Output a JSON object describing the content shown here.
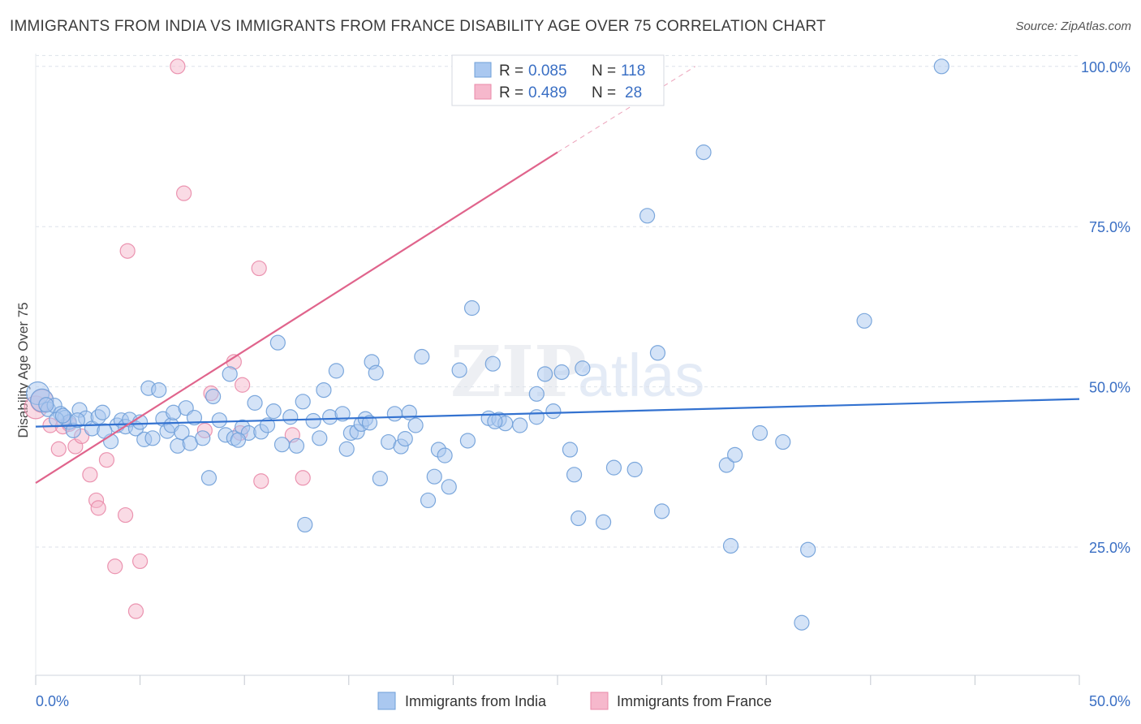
{
  "header": {
    "title": "IMMIGRANTS FROM INDIA VS IMMIGRANTS FROM FRANCE DISABILITY AGE OVER 75 CORRELATION CHART",
    "source": "Source: ZipAtlas.com"
  },
  "watermark": {
    "zip": "ZIP",
    "atlas": "atlas"
  },
  "legend": {
    "rows": [
      {
        "r_label": "R =",
        "r_value": "0.085",
        "n_label": "N =",
        "n_value": "118"
      },
      {
        "r_label": "R =",
        "r_value": "0.489",
        "n_label": "N =",
        "n_value": "28"
      }
    ]
  },
  "colors": {
    "india_fill": "#aac8f0",
    "india_stroke": "#6f9fd8",
    "india_line": "#3372d0",
    "france_fill": "#f6b8cc",
    "france_stroke": "#e98aa8",
    "france_line": "#e0648c",
    "value_text": "#3a6fc4",
    "grid": "#dde2ea"
  },
  "chart_data": {
    "type": "scatter",
    "title": "IMMIGRANTS FROM INDIA VS IMMIGRANTS FROM FRANCE DISABILITY AGE OVER 75 CORRELATION CHART",
    "xlabel": "",
    "ylabel": "Disability Age Over 75",
    "xlim": [
      0,
      50
    ],
    "ylim": [
      5,
      102
    ],
    "x_tick_labels": [
      "0.0%",
      "50.0%"
    ],
    "y_ticks": [
      25,
      50,
      75,
      100
    ],
    "y_tick_labels": [
      "25.0%",
      "50.0%",
      "75.0%",
      "100.0%"
    ],
    "grid": true,
    "legend_position": "bottom",
    "series": [
      {
        "name": "Immigrants from India",
        "r": 0.085,
        "n": 118,
        "trend": {
          "x": [
            0,
            50
          ],
          "y": [
            43.8,
            48.1
          ]
        },
        "points": [
          [
            0.1,
            49.0
          ],
          [
            0.3,
            47.9
          ],
          [
            0.6,
            46.5
          ],
          [
            0.9,
            47.1
          ],
          [
            1.2,
            45.8
          ],
          [
            1.4,
            45.2
          ],
          [
            1.6,
            44.5
          ],
          [
            1.8,
            43.2
          ],
          [
            2.1,
            46.4
          ],
          [
            2.4,
            45.1
          ],
          [
            2.7,
            43.5
          ],
          [
            3.0,
            45.3
          ],
          [
            3.2,
            46.0
          ],
          [
            3.6,
            41.5
          ],
          [
            3.9,
            44.0
          ],
          [
            4.1,
            44.8
          ],
          [
            4.3,
            43.8
          ],
          [
            4.5,
            44.9
          ],
          [
            4.8,
            43.5
          ],
          [
            5.0,
            44.5
          ],
          [
            5.2,
            41.8
          ],
          [
            5.4,
            49.8
          ],
          [
            5.6,
            42.0
          ],
          [
            5.9,
            49.5
          ],
          [
            6.1,
            45.0
          ],
          [
            6.3,
            43.1
          ],
          [
            6.5,
            44.0
          ],
          [
            6.6,
            46.0
          ],
          [
            6.8,
            40.8
          ],
          [
            7.0,
            42.9
          ],
          [
            7.2,
            46.7
          ],
          [
            7.4,
            41.2
          ],
          [
            7.6,
            45.2
          ],
          [
            8.0,
            42.0
          ],
          [
            8.3,
            35.8
          ],
          [
            8.5,
            48.5
          ],
          [
            8.8,
            44.8
          ],
          [
            9.1,
            42.5
          ],
          [
            9.3,
            52.0
          ],
          [
            9.5,
            42.0
          ],
          [
            9.9,
            43.7
          ],
          [
            10.2,
            42.8
          ],
          [
            10.5,
            47.5
          ],
          [
            10.8,
            43.0
          ],
          [
            11.1,
            44.0
          ],
          [
            11.4,
            46.2
          ],
          [
            11.6,
            56.9
          ],
          [
            11.8,
            41.0
          ],
          [
            12.2,
            45.3
          ],
          [
            12.5,
            40.8
          ],
          [
            12.8,
            47.7
          ],
          [
            12.9,
            28.5
          ],
          [
            13.3,
            44.7
          ],
          [
            13.6,
            42.0
          ],
          [
            13.8,
            49.5
          ],
          [
            14.1,
            45.3
          ],
          [
            14.4,
            52.5
          ],
          [
            14.7,
            45.8
          ],
          [
            14.9,
            40.3
          ],
          [
            15.1,
            42.8
          ],
          [
            15.4,
            43.0
          ],
          [
            15.6,
            44.2
          ],
          [
            15.8,
            45.0
          ],
          [
            16.1,
            53.9
          ],
          [
            16.3,
            52.2
          ],
          [
            16.5,
            35.7
          ],
          [
            16.9,
            41.4
          ],
          [
            17.2,
            45.8
          ],
          [
            17.5,
            40.7
          ],
          [
            17.7,
            41.9
          ],
          [
            17.9,
            46.0
          ],
          [
            18.2,
            44.0
          ],
          [
            18.5,
            54.7
          ],
          [
            18.8,
            32.3
          ],
          [
            19.1,
            36.0
          ],
          [
            19.3,
            40.2
          ],
          [
            19.6,
            39.3
          ],
          [
            19.8,
            34.4
          ],
          [
            20.3,
            52.6
          ],
          [
            20.7,
            41.6
          ],
          [
            20.9,
            62.3
          ],
          [
            21.7,
            45.1
          ],
          [
            21.9,
            53.6
          ],
          [
            22.2,
            44.9
          ],
          [
            22.5,
            44.3
          ],
          [
            23.2,
            44.0
          ],
          [
            24.0,
            45.3
          ],
          [
            24.0,
            48.9
          ],
          [
            24.4,
            52.0
          ],
          [
            24.8,
            46.2
          ],
          [
            25.2,
            52.3
          ],
          [
            25.6,
            40.2
          ],
          [
            25.8,
            36.3
          ],
          [
            26.0,
            29.5
          ],
          [
            26.2,
            52.9
          ],
          [
            27.2,
            28.9
          ],
          [
            27.7,
            37.4
          ],
          [
            28.7,
            37.1
          ],
          [
            29.3,
            76.7
          ],
          [
            29.8,
            55.3
          ],
          [
            30.0,
            30.6
          ],
          [
            32.0,
            86.6
          ],
          [
            33.1,
            37.8
          ],
          [
            33.3,
            25.2
          ],
          [
            33.5,
            39.4
          ],
          [
            34.7,
            42.8
          ],
          [
            35.8,
            41.4
          ],
          [
            36.7,
            13.2
          ],
          [
            37.0,
            24.6
          ],
          [
            39.7,
            60.3
          ],
          [
            43.4,
            100.0
          ],
          [
            1.0,
            44.9
          ],
          [
            1.3,
            45.5
          ],
          [
            0.5,
            47.2
          ],
          [
            2.0,
            44.8
          ],
          [
            3.3,
            43.1
          ],
          [
            9.7,
            41.7
          ],
          [
            16.0,
            44.4
          ],
          [
            22.0,
            44.6
          ]
        ]
      },
      {
        "name": "Immigrants from France",
        "r": 0.489,
        "n": 28,
        "trend": {
          "x": [
            0,
            25
          ],
          "y": [
            35.0,
            86.6
          ]
        },
        "trend_dashed": {
          "x": [
            25,
            31.6
          ],
          "y": [
            86.6,
            100.0
          ]
        },
        "points": [
          [
            0.0,
            46.8
          ],
          [
            0.3,
            47.8
          ],
          [
            0.7,
            44.0
          ],
          [
            1.1,
            40.3
          ],
          [
            1.3,
            43.8
          ],
          [
            1.6,
            44.2
          ],
          [
            1.9,
            40.7
          ],
          [
            2.2,
            42.3
          ],
          [
            2.6,
            36.3
          ],
          [
            2.9,
            32.3
          ],
          [
            3.0,
            31.1
          ],
          [
            3.4,
            38.6
          ],
          [
            3.8,
            22.0
          ],
          [
            4.3,
            30.0
          ],
          [
            4.4,
            71.2
          ],
          [
            4.8,
            15.0
          ],
          [
            5.0,
            22.8
          ],
          [
            6.8,
            100.0
          ],
          [
            7.1,
            80.2
          ],
          [
            8.1,
            43.2
          ],
          [
            8.4,
            49.0
          ],
          [
            9.5,
            53.9
          ],
          [
            9.8,
            42.8
          ],
          [
            9.9,
            50.3
          ],
          [
            10.7,
            68.5
          ],
          [
            10.8,
            35.3
          ],
          [
            12.3,
            42.5
          ],
          [
            12.8,
            35.8
          ]
        ]
      }
    ]
  },
  "bottom_legend": {
    "india_label": "Immigrants from India",
    "france_label": "Immigrants from France"
  }
}
